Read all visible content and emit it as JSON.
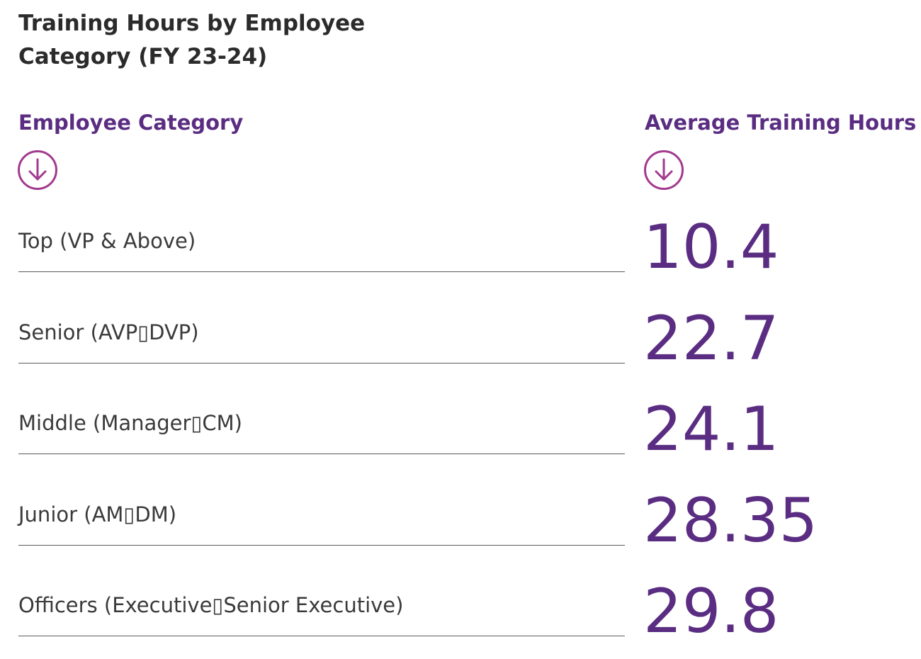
{
  "chart_data": {
    "type": "table",
    "title": "Training Hours by Employee Category (FY 23-24)",
    "columns": [
      "Employee Category",
      "Average Training Hours"
    ],
    "categories": [
      "Top (VP & Above)",
      "Senior (AVP▯DVP)",
      "Middle (Manager▯CM)",
      "Junior (AM▯DM)",
      "Officers (Executive▯Senior Executive)"
    ],
    "values": [
      "10.4",
      "22.7",
      "24.1",
      "28.35",
      "29.8"
    ]
  },
  "icons": {
    "category_sort": "arrow-down-circle-icon",
    "hours_sort": "arrow-down-circle-icon"
  },
  "colors": {
    "accent": "#5a2d82",
    "icon": "#a23a8e",
    "title": "#2b2b2b",
    "label": "#3a3a3a",
    "rule": "#5a5a5a"
  }
}
